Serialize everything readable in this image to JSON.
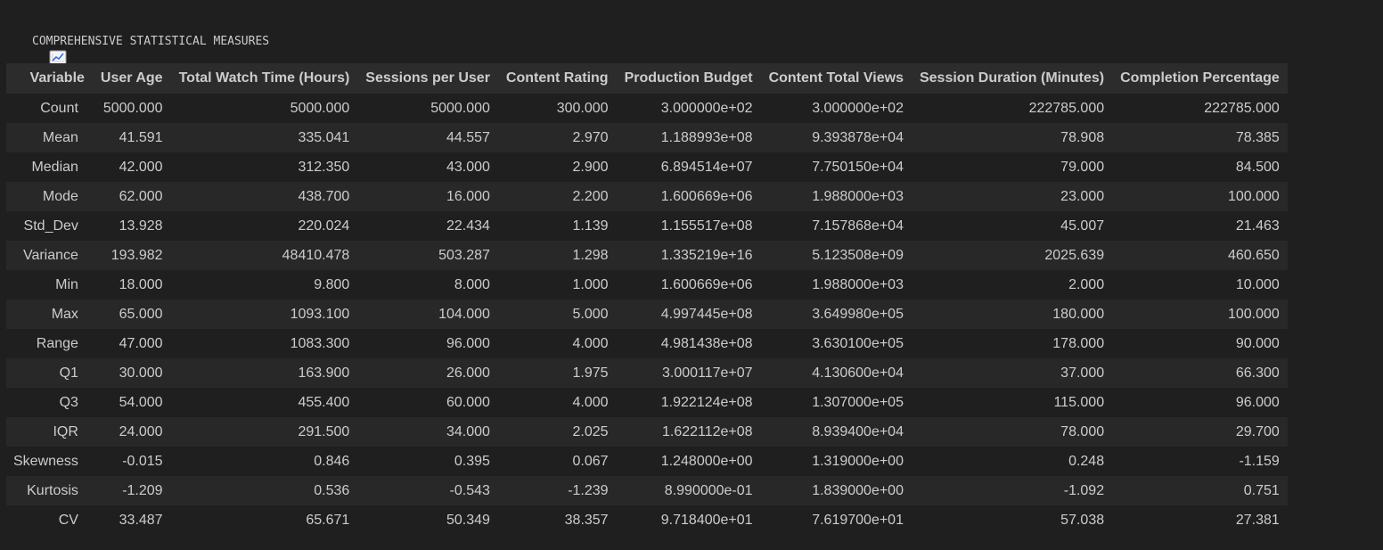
{
  "header": {
    "icon": "chart-increasing-icon",
    "title": "COMPREHENSIVE STATISTICAL MEASURES",
    "separator": "================================================================================"
  },
  "table": {
    "columns": [
      "Variable",
      "User Age",
      "Total Watch Time (Hours)",
      "Sessions per User",
      "Content Rating",
      "Production Budget",
      "Content Total Views",
      "Session Duration (Minutes)",
      "Completion Percentage"
    ],
    "rows": [
      [
        "Count",
        "5000.000",
        "5000.000",
        "5000.000",
        "300.000",
        "3.000000e+02",
        "3.000000e+02",
        "222785.000",
        "222785.000"
      ],
      [
        "Mean",
        "41.591",
        "335.041",
        "44.557",
        "2.970",
        "1.188993e+08",
        "9.393878e+04",
        "78.908",
        "78.385"
      ],
      [
        "Median",
        "42.000",
        "312.350",
        "43.000",
        "2.900",
        "6.894514e+07",
        "7.750150e+04",
        "79.000",
        "84.500"
      ],
      [
        "Mode",
        "62.000",
        "438.700",
        "16.000",
        "2.200",
        "1.600669e+06",
        "1.988000e+03",
        "23.000",
        "100.000"
      ],
      [
        "Std_Dev",
        "13.928",
        "220.024",
        "22.434",
        "1.139",
        "1.155517e+08",
        "7.157868e+04",
        "45.007",
        "21.463"
      ],
      [
        "Variance",
        "193.982",
        "48410.478",
        "503.287",
        "1.298",
        "1.335219e+16",
        "5.123508e+09",
        "2025.639",
        "460.650"
      ],
      [
        "Min",
        "18.000",
        "9.800",
        "8.000",
        "1.000",
        "1.600669e+06",
        "1.988000e+03",
        "2.000",
        "10.000"
      ],
      [
        "Max",
        "65.000",
        "1093.100",
        "104.000",
        "5.000",
        "4.997445e+08",
        "3.649980e+05",
        "180.000",
        "100.000"
      ],
      [
        "Range",
        "47.000",
        "1083.300",
        "96.000",
        "4.000",
        "4.981438e+08",
        "3.630100e+05",
        "178.000",
        "90.000"
      ],
      [
        "Q1",
        "30.000",
        "163.900",
        "26.000",
        "1.975",
        "3.000117e+07",
        "4.130600e+04",
        "37.000",
        "66.300"
      ],
      [
        "Q3",
        "54.000",
        "455.400",
        "60.000",
        "4.000",
        "1.922124e+08",
        "1.307000e+05",
        "115.000",
        "96.000"
      ],
      [
        "IQR",
        "24.000",
        "291.500",
        "34.000",
        "2.025",
        "1.622112e+08",
        "8.939400e+04",
        "78.000",
        "29.700"
      ],
      [
        "Skewness",
        "-0.015",
        "0.846",
        "0.395",
        "0.067",
        "1.248000e+00",
        "1.319000e+00",
        "0.248",
        "-1.159"
      ],
      [
        "Kurtosis",
        "-1.209",
        "0.536",
        "-0.543",
        "-1.239",
        "8.990000e-01",
        "1.839000e+00",
        "-1.092",
        "0.751"
      ],
      [
        "CV",
        "33.487",
        "65.671",
        "50.349",
        "38.357",
        "9.718400e+01",
        "7.619700e+01",
        "57.038",
        "27.381"
      ]
    ]
  }
}
